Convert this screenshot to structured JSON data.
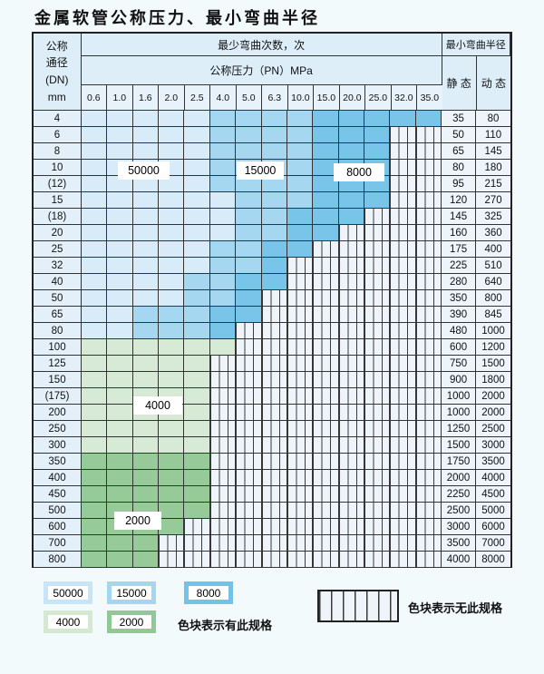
{
  "title": "金属软管公称压力、最小弯曲半径",
  "table": {
    "dn_header_lines": [
      "公称",
      "通径",
      "(DN)",
      "mm"
    ],
    "bend_times_header": "最少弯曲次数，次",
    "pressure_header": "公称压力（PN）MPa",
    "pressure_columns": [
      "0.6",
      "1.0",
      "1.6",
      "2.0",
      "2.5",
      "4.0",
      "5.0",
      "6.3",
      "10.0",
      "15.0",
      "20.0",
      "25.0",
      "32.0",
      "35.0"
    ],
    "radius_header": "最小弯曲半径",
    "static_header": "静 态",
    "dynamic_header": "动 态",
    "rows": [
      {
        "dn": "4",
        "bands": [
          [
            "50000",
            5
          ],
          [
            "15000",
            4
          ],
          [
            "8000",
            5
          ]
        ],
        "static": "35",
        "dynamic": "80"
      },
      {
        "dn": "6",
        "bands": [
          [
            "50000",
            5
          ],
          [
            "15000",
            4
          ],
          [
            "8000",
            3
          ]
        ],
        "static": "50",
        "dynamic": "110"
      },
      {
        "dn": "8",
        "bands": [
          [
            "50000",
            5
          ],
          [
            "15000",
            4
          ],
          [
            "8000",
            3
          ]
        ],
        "static": "65",
        "dynamic": "145"
      },
      {
        "dn": "10",
        "bands": [
          [
            "50000",
            5
          ],
          [
            "15000",
            4
          ],
          [
            "8000",
            3
          ]
        ],
        "static": "80",
        "dynamic": "180"
      },
      {
        "dn": "(12)",
        "bands": [
          [
            "50000",
            5
          ],
          [
            "15000",
            4
          ],
          [
            "8000",
            3
          ]
        ],
        "static": "95",
        "dynamic": "215"
      },
      {
        "dn": "15",
        "bands": [
          [
            "50000",
            6
          ],
          [
            "15000",
            3
          ],
          [
            "8000",
            3
          ]
        ],
        "static": "120",
        "dynamic": "270"
      },
      {
        "dn": "(18)",
        "bands": [
          [
            "50000",
            6
          ],
          [
            "15000",
            2
          ],
          [
            "8000",
            3
          ]
        ],
        "static": "145",
        "dynamic": "325"
      },
      {
        "dn": "20",
        "bands": [
          [
            "50000",
            6
          ],
          [
            "15000",
            2
          ],
          [
            "8000",
            2
          ]
        ],
        "static": "160",
        "dynamic": "360"
      },
      {
        "dn": "25",
        "bands": [
          [
            "50000",
            5
          ],
          [
            "15000",
            2
          ],
          [
            "8000",
            2
          ]
        ],
        "static": "175",
        "dynamic": "400"
      },
      {
        "dn": "32",
        "bands": [
          [
            "50000",
            5
          ],
          [
            "15000",
            2
          ],
          [
            "8000",
            1
          ]
        ],
        "static": "225",
        "dynamic": "510"
      },
      {
        "dn": "40",
        "bands": [
          [
            "50000",
            4
          ],
          [
            "15000",
            2
          ],
          [
            "8000",
            2
          ]
        ],
        "static": "280",
        "dynamic": "640"
      },
      {
        "dn": "50",
        "bands": [
          [
            "50000",
            4
          ],
          [
            "15000",
            2
          ],
          [
            "8000",
            1
          ]
        ],
        "static": "350",
        "dynamic": "800"
      },
      {
        "dn": "65",
        "bands": [
          [
            "50000",
            2
          ],
          [
            "15000",
            3
          ],
          [
            "8000",
            2
          ]
        ],
        "static": "390",
        "dynamic": "845"
      },
      {
        "dn": "80",
        "bands": [
          [
            "50000",
            2
          ],
          [
            "15000",
            3
          ],
          [
            "8000",
            1
          ]
        ],
        "static": "480",
        "dynamic": "1000"
      },
      {
        "dn": "100",
        "bands": [
          [
            "4000",
            6
          ]
        ],
        "static": "600",
        "dynamic": "1200"
      },
      {
        "dn": "125",
        "bands": [
          [
            "4000",
            5
          ]
        ],
        "static": "750",
        "dynamic": "1500"
      },
      {
        "dn": "150",
        "bands": [
          [
            "4000",
            5
          ]
        ],
        "static": "900",
        "dynamic": "1800"
      },
      {
        "dn": "(175)",
        "bands": [
          [
            "4000",
            5
          ]
        ],
        "static": "1000",
        "dynamic": "2000"
      },
      {
        "dn": "200",
        "bands": [
          [
            "4000",
            5
          ]
        ],
        "static": "1000",
        "dynamic": "2000"
      },
      {
        "dn": "250",
        "bands": [
          [
            "4000",
            5
          ]
        ],
        "static": "1250",
        "dynamic": "2500"
      },
      {
        "dn": "300",
        "bands": [
          [
            "4000",
            5
          ]
        ],
        "static": "1500",
        "dynamic": "3000"
      },
      {
        "dn": "350",
        "bands": [
          [
            "2000",
            5
          ]
        ],
        "static": "1750",
        "dynamic": "3500"
      },
      {
        "dn": "400",
        "bands": [
          [
            "2000",
            5
          ]
        ],
        "static": "2000",
        "dynamic": "4000"
      },
      {
        "dn": "450",
        "bands": [
          [
            "2000",
            5
          ]
        ],
        "static": "2250",
        "dynamic": "4500"
      },
      {
        "dn": "500",
        "bands": [
          [
            "2000",
            5
          ]
        ],
        "static": "2500",
        "dynamic": "5000"
      },
      {
        "dn": "600",
        "bands": [
          [
            "2000",
            4
          ]
        ],
        "static": "3000",
        "dynamic": "6000"
      },
      {
        "dn": "700",
        "bands": [
          [
            "2000",
            3
          ]
        ],
        "static": "3500",
        "dynamic": "7000"
      },
      {
        "dn": "800",
        "bands": [
          [
            "2000",
            3
          ]
        ],
        "static": "4000",
        "dynamic": "8000"
      }
    ]
  },
  "overlays": [
    {
      "text": "50000"
    },
    {
      "text": "15000"
    },
    {
      "text": "8000"
    },
    {
      "text": "4000"
    },
    {
      "text": "2000"
    }
  ],
  "legend": {
    "items": [
      {
        "label": "50000",
        "color": "#c9e5f5"
      },
      {
        "label": "15000",
        "color": "#a3d6f0"
      },
      {
        "label": "8000",
        "color": "#74c2e8"
      },
      {
        "label": "4000",
        "color": "#d4e8d2"
      },
      {
        "label": "2000",
        "color": "#8fc994"
      }
    ],
    "has_spec_text": "色块表示有此规格",
    "no_spec_text": "色块表示无此规格"
  },
  "colors": {
    "50000": "#d7ebf8",
    "15000": "#a5d7f0",
    "8000": "#79c4e9",
    "4000": "#d7ead5",
    "2000": "#96cb99",
    "hatch_bg": "#eef4fa",
    "hatch_line": "#3a3a3a"
  }
}
